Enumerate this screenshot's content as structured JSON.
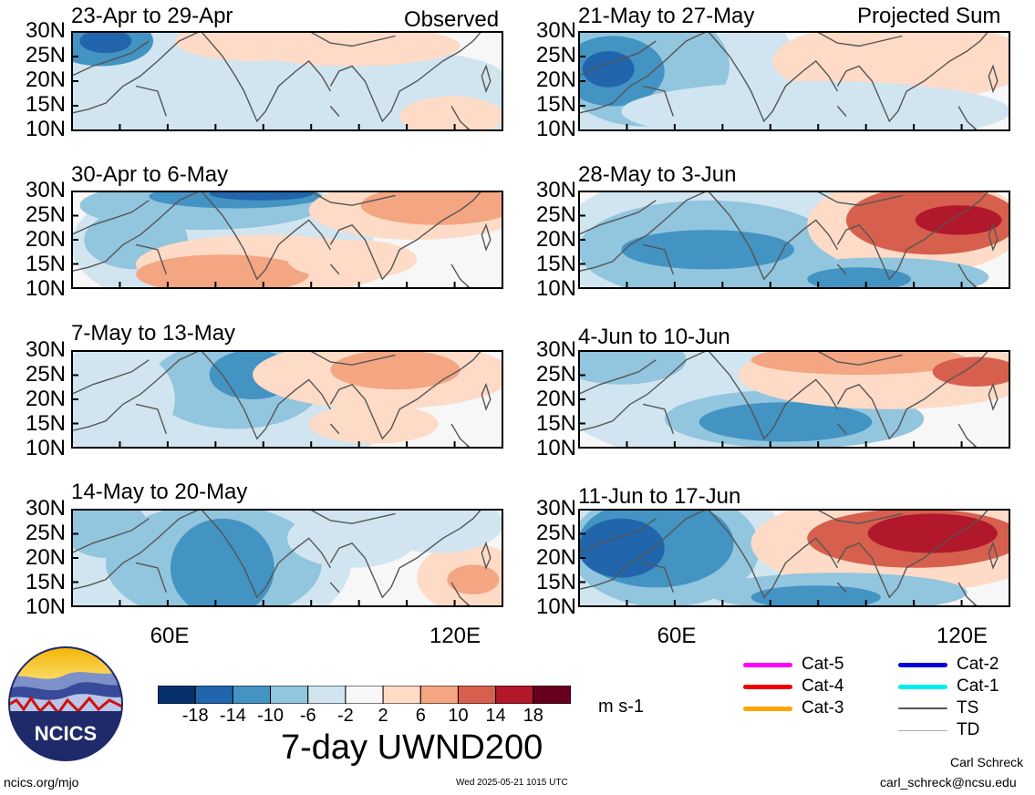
{
  "panels": [
    {
      "id": "p1",
      "title": "23-Apr to 29-Apr",
      "tag": "Observed"
    },
    {
      "id": "p2",
      "title": "30-Apr to 6-May",
      "tag": ""
    },
    {
      "id": "p3",
      "title": "7-May to 13-May",
      "tag": ""
    },
    {
      "id": "p4",
      "title": "14-May to 20-May",
      "tag": ""
    },
    {
      "id": "p5",
      "title": "21-May to 27-May",
      "tag": "Projected Sum"
    },
    {
      "id": "p6",
      "title": "28-May to 3-Jun",
      "tag": ""
    },
    {
      "id": "p7",
      "title": "4-Jun to 10-Jun",
      "tag": ""
    },
    {
      "id": "p8",
      "title": "11-Jun to 17-Jun",
      "tag": ""
    }
  ],
  "lat_labels": [
    "30N",
    "25N",
    "20N",
    "15N",
    "10N"
  ],
  "lon_labels": [
    "60E",
    "120E"
  ],
  "colorbar": {
    "colors": [
      "#08306b",
      "#2166ac",
      "#4393c3",
      "#92c5de",
      "#d1e5f0",
      "#f7f7f7",
      "#fddbc7",
      "#f4a582",
      "#d6604d",
      "#b2182b",
      "#67001f"
    ],
    "labels": [
      "-18",
      "-14",
      "-10",
      "-6",
      "-2",
      "2",
      "6",
      "10",
      "14",
      "18"
    ],
    "units": "m s-1"
  },
  "title": "7-day UWND200",
  "storm_legend": [
    {
      "label": "Cat-5",
      "color": "#ff00ff"
    },
    {
      "label": "Cat-4",
      "color": "#ee0000"
    },
    {
      "label": "Cat-3",
      "color": "#ffa500"
    },
    {
      "label": "Cat-2",
      "color": "#0000dd"
    },
    {
      "label": "Cat-1",
      "color": "#00eeee"
    },
    {
      "label": "TS",
      "color": "#555555"
    },
    {
      "label": "TD",
      "color": "#aaaaaa"
    }
  ],
  "logo_text": "NCICS",
  "footer": {
    "site": "ncics.org/mjo",
    "timestamp": "Wed 2025-05-21 1015 UTC",
    "author": "Carl Schreck",
    "email": "carl_schreck@ncsu.edu"
  }
}
